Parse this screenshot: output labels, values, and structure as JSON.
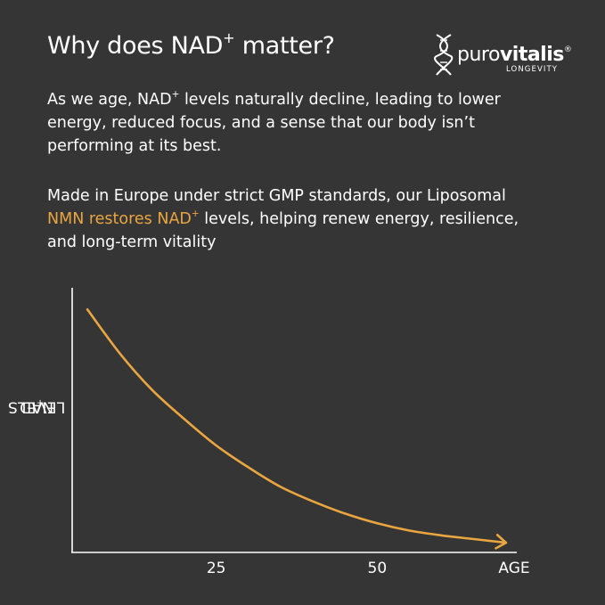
{
  "header": {
    "title_main": "Why does NAD",
    "title_sup": "+",
    "title_end": " matter?"
  },
  "brand": {
    "name_light": "puro",
    "name_bold": "vitalis",
    "registered": "®",
    "tagline": "LONGEVITY"
  },
  "body": {
    "p1_a": "As we age, NAD",
    "p1_sup": "+",
    "p1_b": " levels naturally decline, leading to lower energy, reduced focus, and a sense that our body isn’t performing at its best.",
    "p2_a": "Made in Europe under strict GMP standards, our Liposomal ",
    "p2_accent_a": "NMN restores NAD",
    "p2_accent_sup": "+",
    "p2_b": " levels, helping renew energy, resilience, and long-term vitality"
  },
  "colors": {
    "background": "#353535",
    "accent": "#e9a640",
    "text": "#ffffff"
  },
  "chart_data": {
    "type": "line",
    "ylabel_main": "NAD",
    "ylabel_sup": "+",
    "ylabel_end": " LEVELS",
    "xlabel": "AGE",
    "x_ticks": [
      25,
      50
    ],
    "xlim": [
      0,
      75
    ],
    "series": [
      {
        "x": [
          5,
          10,
          15,
          20,
          25,
          30,
          35,
          40,
          45,
          50,
          55,
          60,
          65,
          70
        ],
        "values": [
          100,
          82,
          67,
          55,
          44,
          35,
          27,
          21,
          16,
          12,
          9,
          7,
          5.5,
          4
        ],
        "color": "#e9a640",
        "end_arrow": true
      }
    ],
    "ylim": [
      0,
      110
    ],
    "grid": false
  }
}
